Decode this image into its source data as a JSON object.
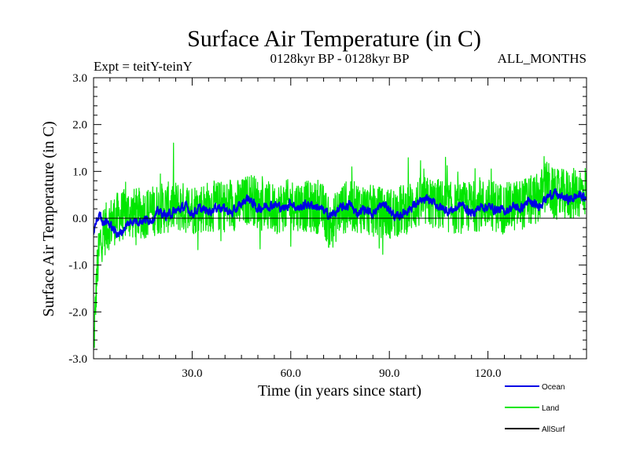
{
  "chart_data": {
    "type": "line",
    "title": "Surface Air Temperature (in C)",
    "subtitle_left": "Expt = teitY-teinY",
    "subtitle_center": "0128kyr BP - 0128kyr BP",
    "subtitle_right": "ALL_MONTHS",
    "xlabel": "Time (in years since start)",
    "ylabel": "Surface Air Temperature (in C)",
    "xlim": [
      0,
      150
    ],
    "ylim": [
      -3.0,
      3.0
    ],
    "x_ticks": [
      30,
      60,
      90,
      120
    ],
    "x_tick_labels": [
      "30.0",
      "60.0",
      "90.0",
      "120.0"
    ],
    "y_ticks": [
      -3,
      -2,
      -1,
      0,
      1,
      2,
      3
    ],
    "y_tick_labels": [
      "-3.0",
      "-2.0",
      "-1.0",
      "0.0",
      "1.0",
      "2.0",
      "3.0"
    ],
    "zero_line": true,
    "series": [
      {
        "name": "Land",
        "color": "#00e600",
        "x": [
          0,
          1,
          2,
          3,
          5,
          7,
          10,
          15,
          20,
          25,
          30,
          35,
          40,
          45,
          48,
          50,
          55,
          60,
          65,
          70,
          72,
          75,
          80,
          85,
          90,
          95,
          100,
          105,
          110,
          115,
          120,
          125,
          130,
          135,
          138,
          140,
          145,
          150
        ],
        "values": [
          -2.8,
          -1.2,
          -0.5,
          -0.3,
          -0.1,
          0.0,
          0.1,
          0.1,
          0.2,
          0.25,
          0.2,
          0.25,
          0.25,
          0.3,
          0.45,
          0.3,
          0.2,
          0.3,
          0.25,
          0.2,
          -0.2,
          0.2,
          0.25,
          0.15,
          0.1,
          0.2,
          0.35,
          0.3,
          0.2,
          0.25,
          0.3,
          0.2,
          0.3,
          0.4,
          0.7,
          0.5,
          0.5,
          0.6
        ],
        "noise_amplitude": 0.55
      },
      {
        "name": "Ocean",
        "color": "#0000e6",
        "x": [
          0,
          1,
          2,
          3,
          4,
          6,
          8,
          10,
          12,
          15,
          18,
          20,
          22,
          25,
          28,
          30,
          32,
          35,
          38,
          40,
          42,
          45,
          47,
          48,
          50,
          52,
          55,
          58,
          60,
          62,
          65,
          68,
          70,
          72,
          75,
          78,
          80,
          82,
          85,
          88,
          90,
          92,
          95,
          98,
          100,
          102,
          105,
          108,
          110,
          112,
          115,
          118,
          120,
          122,
          125,
          128,
          130,
          132,
          135,
          138,
          140,
          142,
          145,
          148,
          150
        ],
        "values": [
          -0.3,
          -0.05,
          0.1,
          -0.1,
          -0.05,
          -0.25,
          -0.35,
          -0.15,
          -0.05,
          -0.05,
          0.0,
          0.15,
          0.05,
          0.15,
          0.25,
          0.1,
          0.2,
          0.15,
          0.25,
          0.2,
          0.1,
          0.3,
          0.45,
          0.35,
          0.2,
          0.25,
          0.3,
          0.2,
          0.35,
          0.2,
          0.3,
          0.25,
          0.15,
          0.05,
          0.2,
          0.3,
          0.1,
          0.2,
          0.1,
          0.3,
          0.2,
          0.0,
          0.15,
          0.3,
          0.35,
          0.4,
          0.25,
          0.15,
          0.2,
          0.3,
          0.1,
          0.25,
          0.25,
          0.2,
          0.15,
          0.25,
          0.2,
          0.35,
          0.25,
          0.45,
          0.55,
          0.45,
          0.4,
          0.5,
          0.4
        ],
        "noise_amplitude": 0.07
      },
      {
        "name": "AllSurf",
        "color": "#000000",
        "x": [],
        "values": []
      }
    ],
    "legend": {
      "entries": [
        "Ocean",
        "Land",
        "AllSurf"
      ],
      "colors": [
        "#0000e6",
        "#00e600",
        "#000000"
      ],
      "position": "bottom-right"
    }
  }
}
